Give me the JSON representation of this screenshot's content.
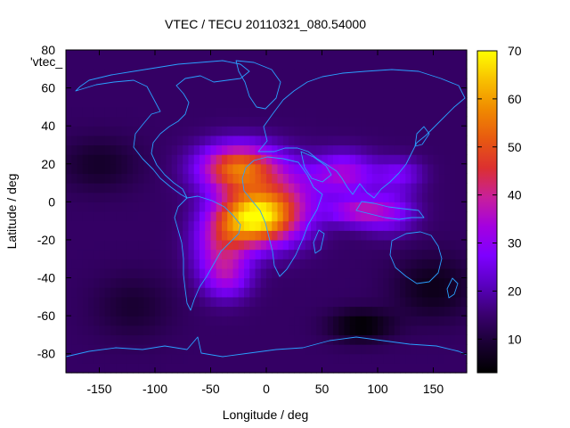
{
  "chart_data": {
    "type": "heatmap",
    "title": "VTEC / TECU 20110321_080.54000",
    "xlabel": "Longitude / deg",
    "ylabel": "Latitude / deg",
    "key_label": "'vtec_",
    "xlim": [
      -180,
      180
    ],
    "ylim": [
      -90,
      80
    ],
    "x_ticks": [
      -150,
      -100,
      -50,
      0,
      50,
      100,
      150
    ],
    "y_ticks": [
      80,
      60,
      40,
      20,
      0,
      -20,
      -40,
      -60,
      -80
    ],
    "colorbar": {
      "range": [
        3,
        70
      ],
      "ticks": [
        10,
        20,
        30,
        40,
        50,
        60,
        70
      ],
      "palette": [
        "#000000",
        "#1a0033",
        "#3a0070",
        "#5a00c0",
        "#7e00ff",
        "#a400e0",
        "#c8209a",
        "#dc3030",
        "#e85a10",
        "#f08a00",
        "#f8c000",
        "#ffff00"
      ]
    },
    "grid": false,
    "background_vtec": 14,
    "anomalies": [
      {
        "lon": -10,
        "lat": -8,
        "amp": 50,
        "sx": 22,
        "sy": 10
      },
      {
        "lon": -25,
        "lat": 18,
        "amp": 40,
        "sx": 25,
        "sy": 9
      },
      {
        "lon": -40,
        "lat": -22,
        "amp": 22,
        "sx": 18,
        "sy": 14
      },
      {
        "lon": 20,
        "lat": 0,
        "amp": 18,
        "sx": 22,
        "sy": 14
      },
      {
        "lon": -35,
        "lat": -40,
        "amp": 12,
        "sx": 15,
        "sy": 8
      },
      {
        "lon": 70,
        "lat": 15,
        "amp": 20,
        "sx": 20,
        "sy": 8
      },
      {
        "lon": 80,
        "lat": -5,
        "amp": 18,
        "sx": 18,
        "sy": 5
      },
      {
        "lon": 110,
        "lat": -5,
        "amp": 15,
        "sx": 18,
        "sy": 8
      },
      {
        "lon": 120,
        "lat": 15,
        "amp": 12,
        "sx": 15,
        "sy": 6
      },
      {
        "lon": -150,
        "lat": 20,
        "amp": -6,
        "sx": 25,
        "sy": 10
      },
      {
        "lon": 150,
        "lat": -45,
        "amp": -8,
        "sx": 25,
        "sy": 12
      },
      {
        "lon": 85,
        "lat": -65,
        "amp": -11,
        "sx": 20,
        "sy": 6
      },
      {
        "lon": -120,
        "lat": -55,
        "amp": -5,
        "sx": 25,
        "sy": 12
      }
    ]
  }
}
